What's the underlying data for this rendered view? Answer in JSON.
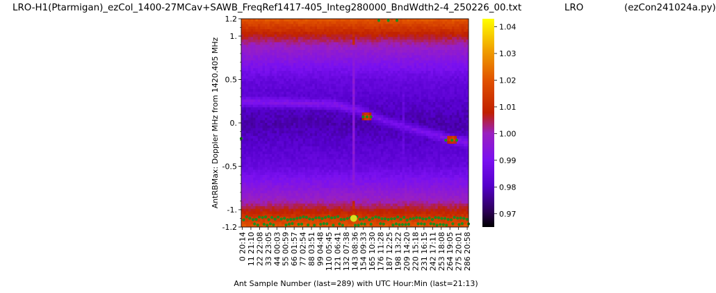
{
  "titles": {
    "main": "LRO-H1(Ptarmigan)_ezCol_1400-27MCav+SAWB_FreqRef1417-405_Integ280000_BndWdth2-4_250226_00.txt",
    "mid": "LRO",
    "right": "(ezCon241024a.py)"
  },
  "chart_data": {
    "type": "heatmap",
    "xlabel": "Ant Sample Number (last=289) with UTC Hour:Min (last=21:13)",
    "ylabel": "AntRBMax:  Doppler MHz from 1420.405 MHz",
    "x_range": [
      0,
      289
    ],
    "y_range": [
      -1.2,
      1.2
    ],
    "y_ticks": [
      "1.2",
      "1.",
      "0.5",
      "0.",
      "-0.5",
      "-1.",
      "-1.2"
    ],
    "y_tick_values": [
      1.2,
      1.0,
      0.5,
      0.0,
      -0.5,
      -1.0,
      -1.2
    ],
    "x_ticks": [
      "0  20:14",
      "11  21:10",
      "22  22:08",
      "33  23:05",
      "44  00:03",
      "55  00:59",
      "66  01:57",
      "77  02:54",
      "88  03:51",
      "99  04:48",
      "110  05:45",
      "121  06:41",
      "132  07:38",
      "143  08:36",
      "154  09:33",
      "165  10:30",
      "176  11:28",
      "187  12:25",
      "198  13:22",
      "209  14:20",
      "220  15:18",
      "231  16:15",
      "242  17:11",
      "253  18:08",
      "264  19:05",
      "275  20:01",
      "286  20:58"
    ],
    "x_tick_values": [
      0,
      11,
      22,
      33,
      44,
      55,
      66,
      77,
      88,
      99,
      110,
      121,
      132,
      143,
      154,
      165,
      176,
      187,
      198,
      209,
      220,
      231,
      242,
      253,
      264,
      275,
      286
    ],
    "colorbar": {
      "colormap": "gnuplot",
      "range": [
        0.965,
        1.043
      ],
      "ticks": [
        "0.97",
        "0.98",
        "0.99",
        "1.00",
        "1.01",
        "1.02",
        "1.03",
        "1.04"
      ],
      "tick_values": [
        0.97,
        0.98,
        0.99,
        1.0,
        1.01,
        1.02,
        1.03,
        1.04
      ]
    },
    "features": {
      "galactic_arm_curve": [
        [
          0,
          0.24
        ],
        [
          60,
          0.23
        ],
        [
          120,
          0.21
        ],
        [
          150,
          0.14
        ],
        [
          180,
          0.03
        ],
        [
          210,
          -0.05
        ],
        [
          240,
          -0.12
        ],
        [
          270,
          -0.2
        ],
        [
          289,
          -0.22
        ]
      ],
      "hot_spots": [
        [
          160,
          0.07,
          1.018
        ],
        [
          268,
          -0.19,
          1.018
        ]
      ],
      "vertical_streaks": [
        [
          143,
          0.995
        ],
        [
          207,
          0.985
        ]
      ],
      "edge_markers_y": [
        -1.1,
        -1.17,
        1.18
      ]
    }
  }
}
